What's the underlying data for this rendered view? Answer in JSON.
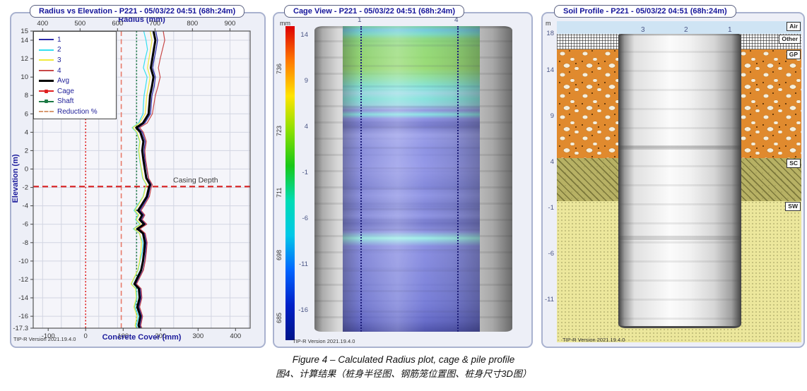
{
  "app": {
    "version_label": "TIP-R Version 2021.19.4.0"
  },
  "panels": {
    "radius": {
      "title": "Radius vs Elevation - P221 - 05/03/22 04:51 (68h:24m)"
    },
    "cage": {
      "title": "Cage View - P221 - 05/03/22 04:51 (68h:24m)"
    },
    "soil": {
      "title": "Soil Profile - P221 - 05/03/22 04:51 (68h:24m)"
    }
  },
  "caption": {
    "line1": "Figure 4 – Calculated Radius plot, cage & pile profile",
    "line2": "图4、计算结果（桩身半径图、钢筋笼位置图、桩身尺寸3D图）"
  },
  "colors": {
    "accent_navy": "#15159b",
    "casing_red": "#d92020",
    "shaft_green": "#1d7a45",
    "reduction_salmon": "#e87a6a"
  },
  "chart_data": [
    {
      "id": "radius_vs_elevation",
      "type": "line",
      "top_axis": {
        "label": "Radius (mm)",
        "range": [
          375,
          954
        ],
        "ticks": [
          400,
          500,
          600,
          700,
          800,
          900
        ]
      },
      "bottom_axis": {
        "label": "Concrete Cover (mm)",
        "ticks": [
          -100,
          0,
          100,
          200,
          300,
          400
        ],
        "radius_offset_mm": 515
      },
      "y_axis": {
        "label": "Elevation (m)",
        "range": [
          15,
          -17.3
        ],
        "ticks": [
          15,
          14,
          12,
          10,
          8,
          6,
          4,
          2,
          0,
          -2,
          -4,
          -6,
          -8,
          -10,
          -12,
          -14,
          -16,
          -17.3
        ]
      },
      "grid": {
        "x_step_mm": 50,
        "y_step_m": 2
      },
      "elevations": [
        15,
        14,
        13,
        12,
        11,
        10,
        9,
        8,
        7,
        6,
        5,
        4.5,
        4,
        3,
        2,
        1,
        0,
        -1,
        -1.7,
        -2,
        -3,
        -4,
        -4.5,
        -5,
        -5.5,
        -6,
        -6.5,
        -7,
        -8,
        -9,
        -10,
        -11,
        -12,
        -12.5,
        -13,
        -14,
        -15,
        -16,
        -17,
        -17.3
      ],
      "series": [
        {
          "name": "1",
          "color": "#2a2aa8",
          "width": 1.2,
          "values": [
            702,
            707,
            703,
            698,
            694,
            701,
            698,
            692,
            690,
            688,
            673,
            655,
            666,
            674,
            671,
            673,
            678,
            682,
            690,
            687,
            682,
            668,
            660,
            671,
            664,
            676,
            658,
            672,
            677,
            675,
            673,
            668,
            655,
            649,
            661,
            663,
            657,
            665,
            660,
            663
          ]
        },
        {
          "name": "2",
          "color": "#35dff0",
          "width": 1.2,
          "values": [
            670,
            676,
            680,
            674,
            669,
            679,
            675,
            671,
            669,
            668,
            656,
            639,
            651,
            659,
            656,
            659,
            663,
            667,
            677,
            674,
            668,
            652,
            644,
            655,
            648,
            660,
            642,
            658,
            668,
            666,
            660,
            655,
            643,
            637,
            650,
            652,
            646,
            656,
            650,
            653
          ]
        },
        {
          "name": "3",
          "color": "#f0ea3a",
          "width": 1.2,
          "values": [
            687,
            692,
            688,
            684,
            680,
            687,
            683,
            678,
            676,
            674,
            659,
            641,
            652,
            660,
            657,
            660,
            664,
            668,
            678,
            675,
            669,
            654,
            646,
            657,
            650,
            662,
            644,
            659,
            664,
            662,
            659,
            654,
            642,
            636,
            648,
            650,
            644,
            652,
            647,
            650
          ]
        },
        {
          "name": "4",
          "color": "#c84848",
          "width": 1.2,
          "values": [
            722,
            726,
            720,
            714,
            709,
            714,
            708,
            701,
            697,
            693,
            679,
            659,
            669,
            677,
            673,
            675,
            679,
            683,
            693,
            690,
            685,
            671,
            663,
            673,
            666,
            678,
            660,
            674,
            679,
            677,
            674,
            669,
            657,
            651,
            663,
            665,
            659,
            667,
            662,
            665
          ]
        },
        {
          "name": "Avg",
          "color": "#000000",
          "width": 3,
          "values": [
            696,
            701,
            697,
            693,
            689,
            696,
            692,
            687,
            685,
            683,
            668,
            650,
            661,
            669,
            666,
            669,
            673,
            677,
            687,
            684,
            678,
            663,
            655,
            666,
            659,
            671,
            653,
            668,
            673,
            671,
            668,
            663,
            651,
            645,
            657,
            659,
            653,
            661,
            656,
            659
          ]
        }
      ],
      "reference_lines": [
        {
          "name": "Cage",
          "orientation": "vertical",
          "radius_mm": 515,
          "cover_mm": 0,
          "color": "#e02020",
          "style": "dotted"
        },
        {
          "name": "Shaft",
          "orientation": "vertical",
          "radius_mm": 651,
          "color": "#1d7a45",
          "style": "dotted"
        },
        {
          "name": "Reduction %",
          "orientation": "vertical",
          "radius_mm": 610,
          "cover_mm": 95,
          "color": "#e87a6a",
          "style": "dashed"
        },
        {
          "name": "Casing",
          "orientation": "horizontal",
          "elevation_m": -1.9,
          "color": "#d92020",
          "style": "dashed",
          "label": "Casing Depth"
        }
      ],
      "legend": [
        {
          "label": "1",
          "color": "#2a2aa8",
          "style": "solid"
        },
        {
          "label": "2",
          "color": "#35dff0",
          "style": "solid"
        },
        {
          "label": "3",
          "color": "#f0ea3a",
          "style": "solid"
        },
        {
          "label": "4",
          "color": "#c84848",
          "style": "solid"
        },
        {
          "label": "Avg",
          "color": "#000000",
          "style": "solid-thick"
        },
        {
          "label": "Cage",
          "color": "#e02020",
          "style": "marker"
        },
        {
          "label": "Shaft",
          "color": "#1d7a45",
          "style": "marker"
        },
        {
          "label": "Reduction %",
          "color": "#d89a70",
          "style": "dashed"
        }
      ]
    },
    {
      "id": "cage_view",
      "type": "heatmap",
      "colorbar": {
        "unit": "mm",
        "ticks": [
          736,
          723,
          711,
          698,
          685
        ],
        "colors": [
          "#dd0000",
          "#ff7a00",
          "#ffe400",
          "#8ae000",
          "#18c818",
          "#00dcb4",
          "#00c8e8",
          "#0064ff",
          "#0020c8",
          "#001488"
        ]
      },
      "y_ticks": [
        14,
        9,
        4,
        -1,
        -6,
        -11,
        -16
      ],
      "wires": [
        "1",
        "4"
      ],
      "bands": [
        {
          "elev": 15,
          "color": "#6fd6a0"
        },
        {
          "elev": 14.6,
          "color": "#5cc2dc"
        },
        {
          "elev": 14.15,
          "color": "#66d8c0"
        },
        {
          "elev": 13.6,
          "color": "#7cd670"
        },
        {
          "elev": 12.5,
          "color": "#85d862"
        },
        {
          "elev": 10.4,
          "color": "#8ad95f"
        },
        {
          "elev": 9.2,
          "color": "#7ee0a4"
        },
        {
          "elev": 8.4,
          "color": "#6fe4d7"
        },
        {
          "elev": 7.7,
          "color": "#92dbe6"
        },
        {
          "elev": 7.1,
          "color": "#71e2d9"
        },
        {
          "elev": 6.4,
          "color": "#89d2e2"
        },
        {
          "elev": 5.85,
          "color": "#8286de"
        },
        {
          "elev": 5.4,
          "color": "#76e0e3"
        },
        {
          "elev": 4.95,
          "color": "#7c81e3"
        },
        {
          "elev": 4.2,
          "color": "#6165c7"
        },
        {
          "elev": 3.2,
          "color": "#8b90e9"
        },
        {
          "elev": 1.6,
          "color": "#7b81e3"
        },
        {
          "elev": -0.5,
          "color": "#8287e8"
        },
        {
          "elev": -2.4,
          "color": "#6e74d8"
        },
        {
          "elev": -3.4,
          "color": "#7f85e6"
        },
        {
          "elev": -4.6,
          "color": "#686ed0"
        },
        {
          "elev": -5.6,
          "color": "#7d83e4"
        },
        {
          "elev": -6.4,
          "color": "#5d62c6"
        },
        {
          "elev": -7.3,
          "color": "#7b81e0"
        },
        {
          "elev": -8.05,
          "color": "#8feee8"
        },
        {
          "elev": -8.9,
          "color": "#777de2"
        },
        {
          "elev": -10.5,
          "color": "#7278de"
        },
        {
          "elev": -12.5,
          "color": "#6b72da"
        },
        {
          "elev": -15,
          "color": "#6269d6"
        },
        {
          "elev": -17,
          "color": "#4d53c4"
        },
        {
          "elev": -18.2,
          "color": "#2e339e"
        }
      ]
    },
    {
      "id": "soil_profile",
      "type": "profile",
      "y_axis": {
        "unit": "m",
        "ticks": [
          18,
          14,
          9,
          4,
          -1,
          -6,
          -11
        ]
      },
      "wires": [
        "3",
        "2",
        "1"
      ],
      "layers": [
        {
          "label": "Air",
          "from_m": 19.4,
          "to_m": 18,
          "pattern": "air",
          "color": "#cfe4f4"
        },
        {
          "label": "Other",
          "from_m": 18,
          "to_m": 16.3,
          "pattern": "crosshatch",
          "color": ""
        },
        {
          "label": "GP",
          "from_m": 16.3,
          "to_m": 4.5,
          "pattern": "gravel",
          "color": ""
        },
        {
          "label": "SC",
          "from_m": 4.5,
          "to_m": -0.2,
          "pattern": "diagonal",
          "color": ""
        },
        {
          "label": "SW",
          "from_m": -0.2,
          "to_m": -15.6,
          "pattern": "dots",
          "color": ""
        }
      ],
      "pile": {
        "top_m": 18,
        "bottom_m": -13.8
      }
    }
  ]
}
